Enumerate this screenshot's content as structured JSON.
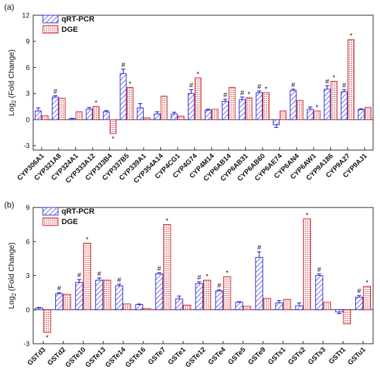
{
  "chart_data": [
    {
      "type": "bar",
      "panel_label": "(a)",
      "ylabel": "Log2 (Fold Change)",
      "ylabel_main": "Log",
      "ylabel_sub": "2",
      "ylabel_rest": " (Fold Change)",
      "ylim": [
        -3.5,
        12
      ],
      "yticks": [
        "-3",
        "0",
        "3",
        "6",
        "9",
        "12"
      ],
      "ytick_values": [
        -3,
        0,
        3,
        6,
        9,
        12
      ],
      "legend": {
        "placement": "top-left"
      },
      "categories": [
        "CYP306A1",
        "CYP321A8",
        "CYP324A1",
        "CYP333A12",
        "CYP333B4",
        "CYP337B5",
        "CYP339A1",
        "CYP354A14",
        "CYP4CG1",
        "CYP4G74",
        "CYP4M14",
        "CYP6AB14",
        "CYP6AB31",
        "CYP6AB60",
        "CYP6AE74",
        "CYP6AN4",
        "CYP6AW1",
        "CYP9A186",
        "CYP9A27",
        "CYP9AJ1"
      ],
      "series": [
        {
          "name": "qRT-PCR",
          "color": "#2b2bd6",
          "values": [
            1.0,
            2.6,
            0.1,
            1.2,
            0.9,
            5.3,
            1.35,
            0.65,
            0.65,
            3.0,
            1.1,
            2.1,
            2.3,
            3.1,
            -0.6,
            3.35,
            1.2,
            3.5,
            3.2,
            1.15
          ],
          "errors": [
            0.35,
            0.15,
            0.05,
            0.2,
            0.15,
            0.5,
            0.5,
            0.25,
            0.2,
            0.45,
            0.1,
            0.25,
            0.3,
            0.2,
            0.3,
            0.15,
            0.25,
            0.4,
            0.25,
            0.1
          ],
          "markers": [
            "",
            "#",
            "",
            "",
            "",
            "#",
            "",
            "",
            "",
            "#",
            "",
            "#",
            "#",
            "#",
            "",
            "#",
            "",
            "#",
            "#",
            ""
          ]
        },
        {
          "name": "DGE",
          "color": "#c8282d",
          "values": [
            0.45,
            2.45,
            0.9,
            1.5,
            -1.6,
            3.7,
            0.2,
            2.7,
            0.4,
            4.8,
            1.2,
            3.7,
            2.5,
            3.1,
            1.0,
            2.2,
            1.0,
            4.4,
            9.2,
            1.4
          ],
          "markers": [
            "",
            "",
            "",
            "*",
            "*",
            "*",
            "",
            "",
            "",
            "*",
            "",
            "",
            "*",
            "*",
            "",
            "",
            "*",
            "*",
            "*",
            ""
          ]
        }
      ]
    },
    {
      "type": "bar",
      "panel_label": "(b)",
      "ylabel": "Log2 (Fold Change)",
      "ylabel_main": "Log",
      "ylabel_sub": "2",
      "ylabel_rest": " (Fold Change)",
      "ylim": [
        -3,
        9
      ],
      "yticks": [
        "-3",
        "0",
        "3",
        "6",
        "9"
      ],
      "ytick_values": [
        -3,
        0,
        3,
        6,
        9
      ],
      "legend": {
        "placement": "top-left"
      },
      "categories": [
        "GSTd3",
        "GSTd2",
        "GSTe10",
        "GSTe13",
        "GSTe14",
        "GSTe16",
        "GSTe7",
        "GSTe1",
        "GSTe12",
        "GSTe4",
        "GSTe5",
        "GSTe9",
        "GSTs1",
        "GSTs2",
        "GSTs3",
        "GSTt1",
        "GSTu1"
      ],
      "series": [
        {
          "name": "qRT-PCR",
          "color": "#2b2bd6",
          "values": [
            0.15,
            1.4,
            2.4,
            2.6,
            2.1,
            0.45,
            3.15,
            0.95,
            2.3,
            1.65,
            0.65,
            4.6,
            0.6,
            0.35,
            3.0,
            -0.2,
            1.1
          ],
          "errors": [
            0.05,
            0.1,
            0.25,
            0.2,
            0.15,
            0.05,
            0.1,
            0.25,
            0.15,
            0.1,
            0.05,
            0.5,
            0.2,
            0.25,
            0.15,
            0.15,
            0.15
          ],
          "markers": [
            "",
            "#",
            "#",
            "#",
            "#",
            "",
            "#",
            "",
            "#",
            "#",
            "",
            "#",
            "",
            "",
            "#",
            "",
            "#"
          ]
        },
        {
          "name": "DGE",
          "color": "#c8282d",
          "values": [
            -2.0,
            1.35,
            5.85,
            2.6,
            0.5,
            0.1,
            7.5,
            0.4,
            2.6,
            2.9,
            0.3,
            1.0,
            0.9,
            8.0,
            0.65,
            -1.25,
            2.05
          ],
          "markers": [
            "*",
            "",
            "*",
            "",
            "",
            "",
            "*",
            "",
            "*",
            "*",
            "",
            "",
            "",
            "*",
            "",
            "",
            "*"
          ]
        }
      ]
    }
  ]
}
